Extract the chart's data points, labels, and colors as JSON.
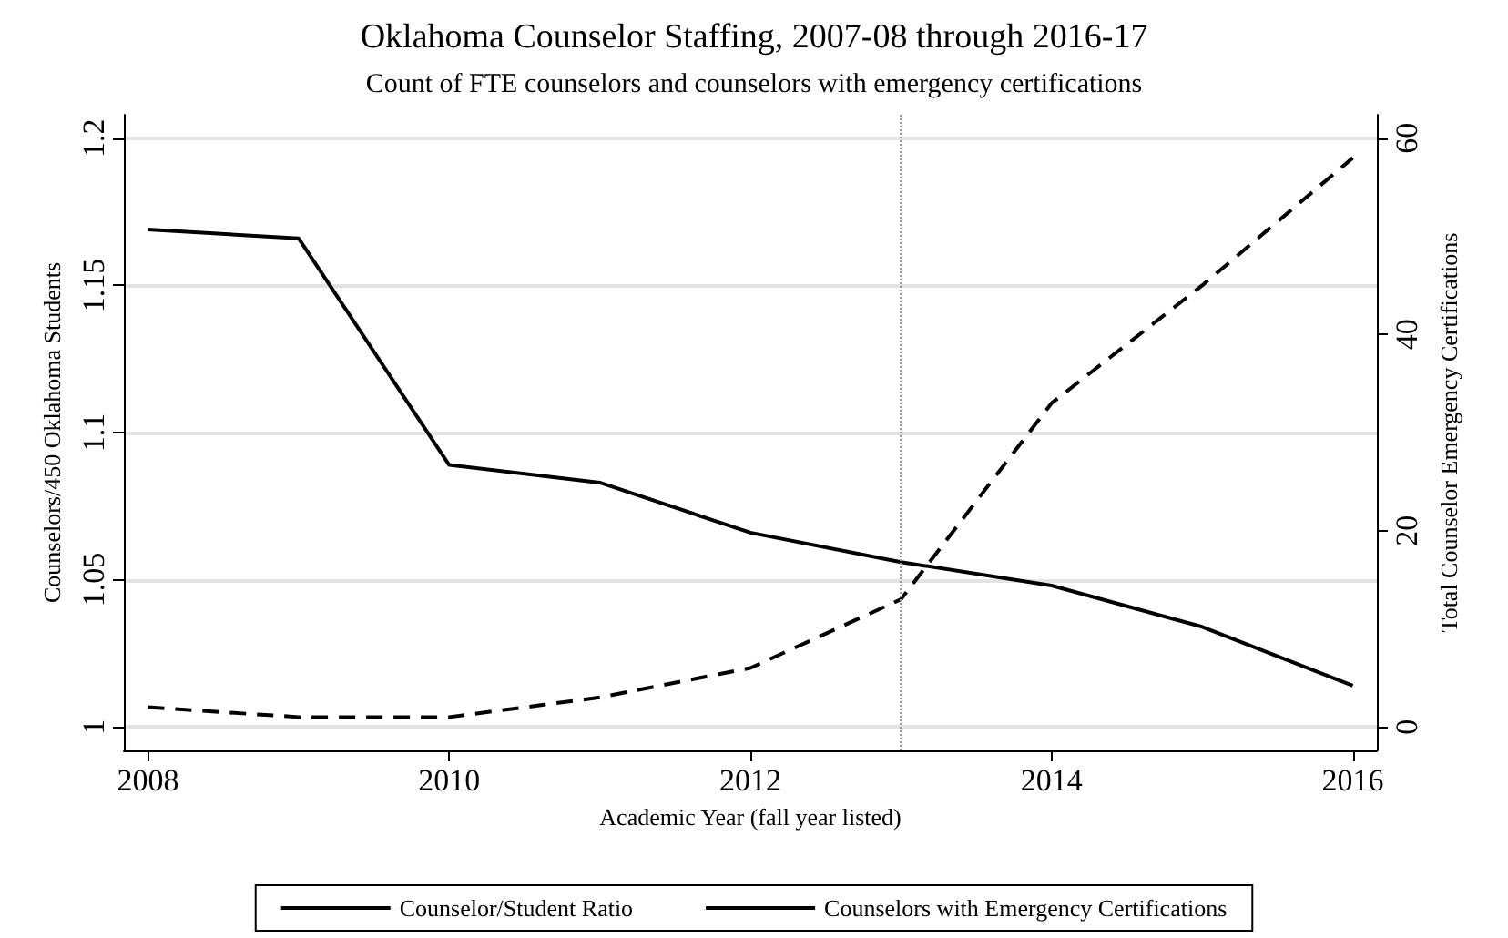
{
  "chart_data": {
    "type": "line",
    "title": "Oklahoma Counselor Staffing, 2007-08 through 2016-17",
    "subtitle": "Count of FTE counselors and counselors with emergency certifications",
    "xlabel": "Academic Year (fall year listed)",
    "ylabel": "Counselors/450 Oklahoma Students",
    "y2label": "Total Counselor Emergency Certifications",
    "x": [
      2008,
      2009,
      2010,
      2011,
      2012,
      2013,
      2014,
      2015,
      2016
    ],
    "series": [
      {
        "name": "Counselor/Student Ratio",
        "color": "#000000",
        "line_style": "solid",
        "values": [
          1.169,
          1.166,
          1.089,
          1.083,
          1.066,
          1.056,
          1.048,
          1.034,
          1.014
        ]
      },
      {
        "name": "Counselors with Emergency Certifications",
        "color": "#000000",
        "line_style": "dashed",
        "axis": "y2",
        "values": [
          2,
          1,
          1,
          3,
          6,
          13,
          33,
          45,
          58
        ]
      }
    ],
    "xlim": [
      2007.84,
      2016.16
    ],
    "xticks": [
      2008,
      2010,
      2012,
      2014,
      2016
    ],
    "ylim": [
      0.992,
      1.208
    ],
    "yticks": [
      1,
      1.05,
      1.1,
      1.15,
      1.2
    ],
    "y2lim": [
      -2.4,
      62.4
    ],
    "y2ticks": [
      0,
      20,
      40,
      60
    ],
    "ref_lines": [
      {
        "axis": "x",
        "value": 2013,
        "color": "#999999",
        "line_style": "dotted"
      }
    ],
    "grid": "y",
    "legend": "bottom",
    "marker": "none"
  }
}
